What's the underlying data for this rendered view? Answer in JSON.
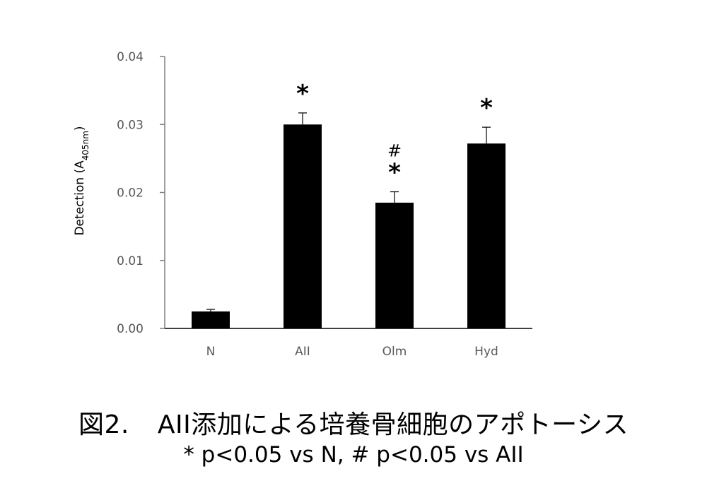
{
  "chart_data": {
    "type": "bar",
    "categories": [
      "N",
      "AII",
      "Olm",
      "Hyd"
    ],
    "series": [
      {
        "values": [
          0.0025,
          0.03,
          0.0185,
          0.0272
        ],
        "errors": [
          0.0003,
          0.0017,
          0.0016,
          0.0024
        ],
        "color": "#000000"
      }
    ],
    "significance": [
      "",
      "*",
      "*",
      "*"
    ],
    "significance_secondary": [
      "",
      "",
      "#",
      ""
    ],
    "ylabel_main": "Detection (A",
    "ylabel_sub": "405nm",
    "ylabel_end": ")",
    "xlabel": "",
    "ylim": [
      0,
      0.04
    ],
    "yticks": [
      "0.00",
      "0.01",
      "0.02",
      "0.03",
      "0.04"
    ],
    "grid": false,
    "legend": "none"
  },
  "caption": {
    "figure_number": "図2.",
    "title": "AII添加による培養骨細胞のアポトーシス",
    "note": "* p<0.05 vs N, # p<0.05 vs AII"
  }
}
